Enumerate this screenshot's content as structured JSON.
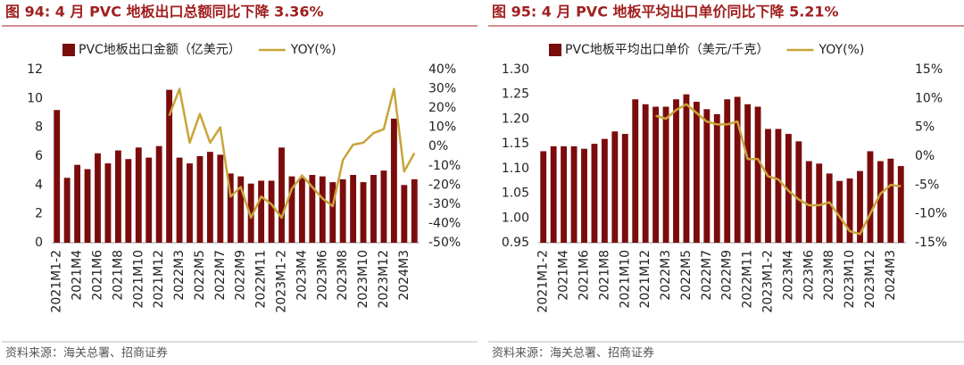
{
  "chart_data": [
    {
      "type": "bar",
      "title": "图 94:  4 月 PVC 地板出口总额同比下降 3.36%",
      "source": "资料来源：海关总署、招商证券",
      "categories": [
        "2021M1-2",
        null,
        "2021M4",
        null,
        "2021M6",
        null,
        "2021M8",
        null,
        "2021M10",
        null,
        "2021M12",
        null,
        "2022M3",
        null,
        "2022M5",
        null,
        "2022M7",
        null,
        "2022M9",
        null,
        "2022M11",
        null,
        "2023M1-2",
        null,
        "2023M4",
        null,
        "2023M6",
        null,
        "2023M8",
        null,
        "2023M10",
        null,
        "2023M12",
        null,
        "2024M3",
        null
      ],
      "series": [
        {
          "name": "PVC地板出口金额（亿美元）",
          "type": "bar",
          "color": "#7b0c0c",
          "values": [
            9.2,
            4.5,
            5.4,
            5.1,
            6.2,
            5.5,
            6.4,
            5.8,
            6.6,
            5.9,
            6.7,
            10.6,
            5.9,
            5.5,
            6.0,
            6.3,
            6.1,
            4.8,
            4.6,
            4.1,
            4.3,
            4.3,
            6.6,
            4.6,
            4.5,
            4.7,
            4.6,
            4.2,
            4.4,
            4.7,
            4.2,
            4.7,
            5.0,
            8.6,
            4.0,
            4.4
          ]
        },
        {
          "name": "YOY(%)",
          "type": "line",
          "axis": "y2",
          "color": "#c9a43a",
          "values": [
            null,
            null,
            null,
            null,
            null,
            null,
            null,
            null,
            null,
            null,
            null,
            16,
            30,
            2,
            17,
            2,
            10,
            -26,
            -21,
            -37,
            -26,
            -30,
            -37,
            -22,
            -15,
            -21,
            -27,
            -31,
            -7,
            1,
            2,
            7,
            9,
            30,
            -13,
            -3.36
          ]
        }
      ],
      "ylim": [
        0,
        12
      ],
      "yticks": [
        0,
        2,
        4,
        6,
        8,
        10,
        12
      ],
      "y2lim": [
        -50,
        40
      ],
      "y2ticks": [
        {
          "value": -50,
          "label": "-50%"
        },
        {
          "value": -40,
          "label": "-40%"
        },
        {
          "value": -30,
          "label": "-30%"
        },
        {
          "value": -20,
          "label": "-20%"
        },
        {
          "value": -10,
          "label": "-10%"
        },
        {
          "value": 0,
          "label": "0%"
        },
        {
          "value": 10,
          "label": "10%"
        },
        {
          "value": 20,
          "label": "20%"
        },
        {
          "value": 30,
          "label": "30%"
        },
        {
          "value": 40,
          "label": "40%"
        }
      ]
    },
    {
      "type": "bar",
      "title": "图 95:   4 月 PVC 地板平均出口单价同比下降 5.21%",
      "source": "资料来源：海关总署、招商证券",
      "categories": [
        "2021M1-2",
        null,
        "2021M4",
        null,
        "2021M6",
        null,
        "2021M8",
        null,
        "2021M10",
        null,
        "2021M12",
        null,
        "2022M3",
        null,
        "2022M5",
        null,
        "2022M7",
        null,
        "2022M9",
        null,
        "2022M11",
        null,
        "2023M1-2",
        null,
        "2023M4",
        null,
        "2023M6",
        null,
        "2023M8",
        null,
        "2023M10",
        null,
        "2023M12",
        null,
        "2024M3",
        null
      ],
      "series": [
        {
          "name": "PVC地板平均出口单价（美元/千克）",
          "type": "bar",
          "color": "#7b0c0c",
          "values": [
            1.135,
            1.145,
            1.145,
            1.145,
            1.14,
            1.15,
            1.16,
            1.175,
            1.17,
            1.24,
            1.23,
            1.225,
            1.225,
            1.24,
            1.25,
            1.235,
            1.22,
            1.21,
            1.24,
            1.245,
            1.23,
            1.225,
            1.18,
            1.18,
            1.17,
            1.155,
            1.115,
            1.11,
            1.09,
            1.075,
            1.08,
            1.095,
            1.135,
            1.115,
            1.12,
            1.105
          ]
        },
        {
          "name": "YOY(%)",
          "type": "line",
          "axis": "y2",
          "color": "#c9a43a",
          "values": [
            null,
            null,
            null,
            null,
            null,
            null,
            null,
            null,
            null,
            null,
            null,
            7,
            6.5,
            8,
            9,
            7.5,
            6,
            5.5,
            5.5,
            6,
            -0.5,
            -0.5,
            -3.5,
            -4,
            -6,
            -7.5,
            -8.5,
            -8.5,
            -8,
            -10.5,
            -13,
            -13.5,
            -10,
            -6.5,
            -5,
            -5.21
          ]
        }
      ],
      "ylim": [
        0.95,
        1.3
      ],
      "yticks": [
        {
          "value": 0.95,
          "label": "0.95"
        },
        {
          "value": 1.0,
          "label": "1.00"
        },
        {
          "value": 1.05,
          "label": "1.05"
        },
        {
          "value": 1.1,
          "label": "1.10"
        },
        {
          "value": 1.15,
          "label": "1.15"
        },
        {
          "value": 1.2,
          "label": "1.20"
        },
        {
          "value": 1.25,
          "label": "1.25"
        },
        {
          "value": 1.3,
          "label": "1.30"
        }
      ],
      "y2lim": [
        -15,
        15
      ],
      "y2ticks": [
        {
          "value": -15,
          "label": "-15%"
        },
        {
          "value": -10,
          "label": "-10%"
        },
        {
          "value": -5,
          "label": "-5%"
        },
        {
          "value": 0,
          "label": "0%"
        },
        {
          "value": 5,
          "label": "5%"
        },
        {
          "value": 10,
          "label": "10%"
        },
        {
          "value": 15,
          "label": "15%"
        }
      ]
    }
  ]
}
